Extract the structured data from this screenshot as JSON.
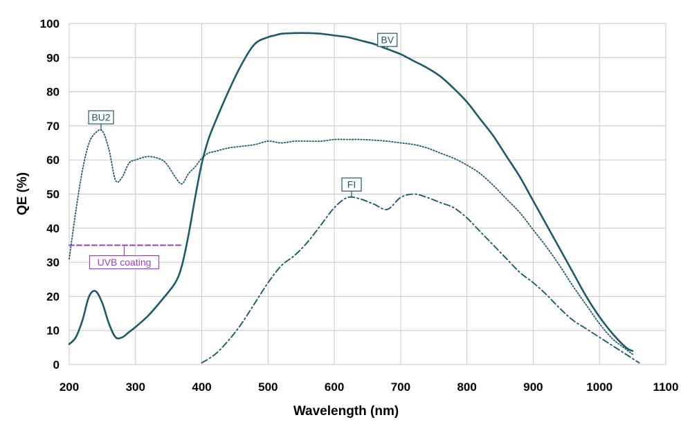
{
  "chart_data": {
    "type": "line",
    "xlabel": "Wavelength (nm)",
    "ylabel": "QE (%)",
    "xlim": [
      200,
      1100
    ],
    "ylim": [
      0,
      100
    ],
    "x_ticks": [
      200,
      300,
      400,
      500,
      600,
      700,
      800,
      900,
      1000,
      1100
    ],
    "y_ticks": [
      0,
      10,
      20,
      30,
      40,
      50,
      60,
      70,
      80,
      90,
      100
    ],
    "x_tick_labels": [
      "200",
      "300",
      "400",
      "500",
      "600",
      "700",
      "800",
      "900",
      "1000",
      "1100"
    ],
    "y_tick_labels": [
      "0",
      "10",
      "20",
      "30",
      "40",
      "50",
      "60",
      "70",
      "80",
      "90",
      "100"
    ],
    "grid": true,
    "colors": {
      "series": "#1a5a6a",
      "uvb": "#9b3ccf",
      "grid": "#c8c8c8",
      "annotation_box": "#1a5a6a"
    },
    "series": [
      {
        "name": "BV",
        "style": "solid",
        "x": [
          200,
          210,
          220,
          230,
          240,
          250,
          260,
          270,
          280,
          290,
          300,
          320,
          340,
          360,
          370,
          380,
          390,
          400,
          410,
          420,
          440,
          460,
          480,
          500,
          510,
          520,
          540,
          560,
          580,
          600,
          620,
          640,
          660,
          680,
          700,
          720,
          740,
          760,
          780,
          800,
          820,
          840,
          860,
          880,
          900,
          920,
          940,
          960,
          980,
          1000,
          1020,
          1040,
          1050
        ],
        "y": [
          6,
          8,
          13,
          20,
          21.5,
          18,
          12,
          8,
          8,
          9.5,
          11,
          14.5,
          19,
          24,
          29,
          38,
          49,
          59,
          66,
          71,
          80,
          88,
          94,
          96,
          96.5,
          97,
          97.2,
          97.2,
          97,
          96.5,
          96,
          95,
          94,
          92.5,
          91,
          89,
          87,
          84.5,
          81,
          77,
          72,
          67,
          61,
          55,
          48,
          41,
          34,
          27,
          20,
          14,
          9,
          5,
          4
        ]
      },
      {
        "name": "BU2",
        "style": "dotted",
        "x": [
          200,
          210,
          220,
          230,
          240,
          250,
          260,
          270,
          280,
          290,
          300,
          320,
          340,
          350,
          360,
          370,
          380,
          390,
          400,
          410,
          420,
          440,
          460,
          480,
          500,
          520,
          540,
          560,
          580,
          600,
          620,
          640,
          660,
          680,
          700,
          720,
          740,
          760,
          780,
          800,
          820,
          840,
          860,
          880,
          900,
          920,
          940,
          960,
          980,
          1000,
          1020,
          1040,
          1050
        ],
        "y": [
          31,
          45,
          57,
          65,
          68,
          68.5,
          63,
          54,
          55,
          59,
          60,
          61,
          60,
          58,
          55,
          53,
          56,
          58,
          60.5,
          62,
          62.5,
          63.5,
          64,
          64.5,
          65.5,
          65,
          65.5,
          65.5,
          65.5,
          66,
          66,
          66,
          65.8,
          65.5,
          65,
          64.5,
          63.5,
          62,
          60.5,
          58.5,
          56,
          52.5,
          48.5,
          44.5,
          39.5,
          34.5,
          29,
          23,
          17.5,
          12,
          7.5,
          4.5,
          3
        ]
      },
      {
        "name": "FI",
        "style": "dashdot",
        "x": [
          400,
          420,
          440,
          460,
          480,
          500,
          520,
          540,
          560,
          580,
          600,
          620,
          640,
          660,
          680,
          700,
          720,
          740,
          760,
          780,
          800,
          820,
          840,
          860,
          880,
          900,
          920,
          940,
          960,
          980,
          1000,
          1020,
          1040,
          1060
        ],
        "y": [
          0.5,
          3,
          7,
          12,
          18,
          24,
          29,
          32,
          36,
          41,
          46,
          49,
          48.5,
          47,
          45.5,
          49,
          50,
          49,
          47.5,
          46,
          43,
          39,
          35,
          31,
          27,
          24,
          20.5,
          16.5,
          13,
          10.5,
          8,
          5.5,
          3,
          0.5
        ]
      },
      {
        "name": "UVB coating",
        "style": "dashed",
        "x": [
          200,
          370
        ],
        "y": [
          35,
          35
        ]
      }
    ],
    "annotations": [
      {
        "text": "BV",
        "series": "BV",
        "at": [
          680,
          95.2
        ]
      },
      {
        "text": "BU2",
        "series": "BU2",
        "at": [
          248,
          72.5
        ]
      },
      {
        "text": "FI",
        "series": "FI",
        "at": [
          626,
          52.8
        ]
      },
      {
        "text": "UVB coating",
        "series": "UVB coating",
        "at": [
          283,
          30
        ]
      }
    ]
  }
}
